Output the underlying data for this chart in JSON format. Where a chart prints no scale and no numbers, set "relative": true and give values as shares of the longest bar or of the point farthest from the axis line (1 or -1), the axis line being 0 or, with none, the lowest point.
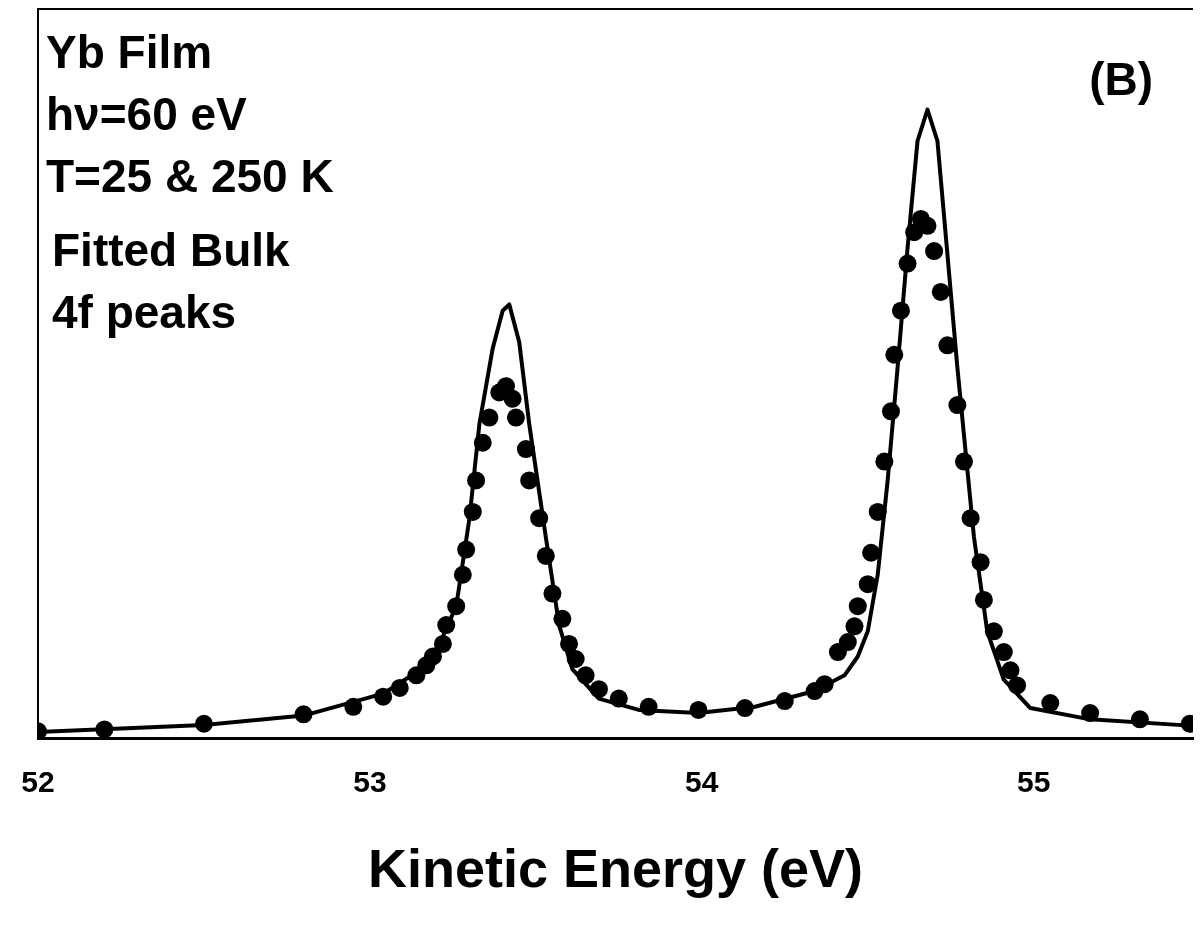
{
  "chart_data": {
    "type": "line",
    "relative": true,
    "xlabel": "Kinetic Energy (eV)",
    "annotations": [
      "Yb Film",
      "hν=60 eV",
      "T=25 & 250 K",
      "Fitted Bulk",
      "4f peaks",
      "(B)"
    ],
    "xlim": [
      52,
      55.48
    ],
    "xticks": [
      52,
      53,
      54,
      55
    ],
    "tick_labels": "x",
    "legend": false,
    "grid": false,
    "series": [
      {
        "type": "line",
        "color": "#000000",
        "marker": "none",
        "line_style": "solid",
        "x": [
          52.0,
          52.5,
          52.8,
          53.04,
          53.15,
          53.21,
          53.26,
          53.3,
          53.33,
          53.37,
          53.4,
          53.42,
          53.45,
          53.48,
          53.53,
          53.57,
          53.61,
          53.69,
          53.81,
          53.99,
          54.16,
          54.34,
          54.43,
          54.47,
          54.5,
          54.53,
          54.56,
          54.59,
          54.62,
          54.65,
          54.68,
          54.71,
          54.74,
          54.77,
          54.82,
          54.86,
          54.91,
          54.99,
          55.17,
          55.47
        ],
        "values": [
          0.01,
          0.021,
          0.036,
          0.071,
          0.108,
          0.15,
          0.21,
          0.35,
          0.5,
          0.62,
          0.68,
          0.69,
          0.63,
          0.5,
          0.32,
          0.18,
          0.11,
          0.063,
          0.045,
          0.04,
          0.05,
          0.075,
          0.1,
          0.13,
          0.17,
          0.26,
          0.41,
          0.59,
          0.78,
          0.95,
          1.0,
          0.95,
          0.77,
          0.59,
          0.32,
          0.17,
          0.093,
          0.048,
          0.03,
          0.02
        ]
      },
      {
        "type": "scatter",
        "color": "#000000",
        "marker": "circle",
        "x": [
          52.0,
          52.2,
          52.5,
          52.8,
          52.95,
          53.04,
          53.09,
          53.14,
          53.17,
          53.19,
          53.22,
          53.23,
          53.26,
          53.28,
          53.29,
          53.31,
          53.32,
          53.34,
          53.36,
          53.39,
          53.41,
          53.43,
          53.44,
          53.47,
          53.48,
          53.51,
          53.53,
          53.55,
          53.58,
          53.6,
          53.62,
          53.65,
          53.69,
          53.75,
          53.84,
          53.99,
          54.13,
          54.25,
          54.34,
          54.37,
          54.41,
          54.44,
          54.46,
          54.47,
          54.5,
          54.51,
          54.53,
          54.55,
          54.57,
          54.58,
          54.6,
          54.62,
          54.64,
          54.66,
          54.68,
          54.7,
          54.72,
          54.74,
          54.77,
          54.79,
          54.81,
          54.84,
          54.85,
          54.88,
          54.91,
          54.93,
          54.95,
          55.05,
          55.17,
          55.32,
          55.47
        ],
        "values": [
          0.011,
          0.014,
          0.023,
          0.038,
          0.05,
          0.066,
          0.08,
          0.1,
          0.116,
          0.13,
          0.15,
          0.18,
          0.21,
          0.26,
          0.3,
          0.36,
          0.41,
          0.47,
          0.51,
          0.55,
          0.56,
          0.54,
          0.51,
          0.46,
          0.41,
          0.35,
          0.29,
          0.23,
          0.19,
          0.15,
          0.126,
          0.1,
          0.078,
          0.063,
          0.05,
          0.045,
          0.048,
          0.059,
          0.075,
          0.086,
          0.137,
          0.153,
          0.178,
          0.21,
          0.245,
          0.295,
          0.36,
          0.44,
          0.52,
          0.61,
          0.68,
          0.755,
          0.805,
          0.826,
          0.815,
          0.775,
          0.71,
          0.625,
          0.53,
          0.44,
          0.35,
          0.28,
          0.22,
          0.17,
          0.137,
          0.108,
          0.084,
          0.056,
          0.04,
          0.03,
          0.023
        ]
      }
    ]
  }
}
